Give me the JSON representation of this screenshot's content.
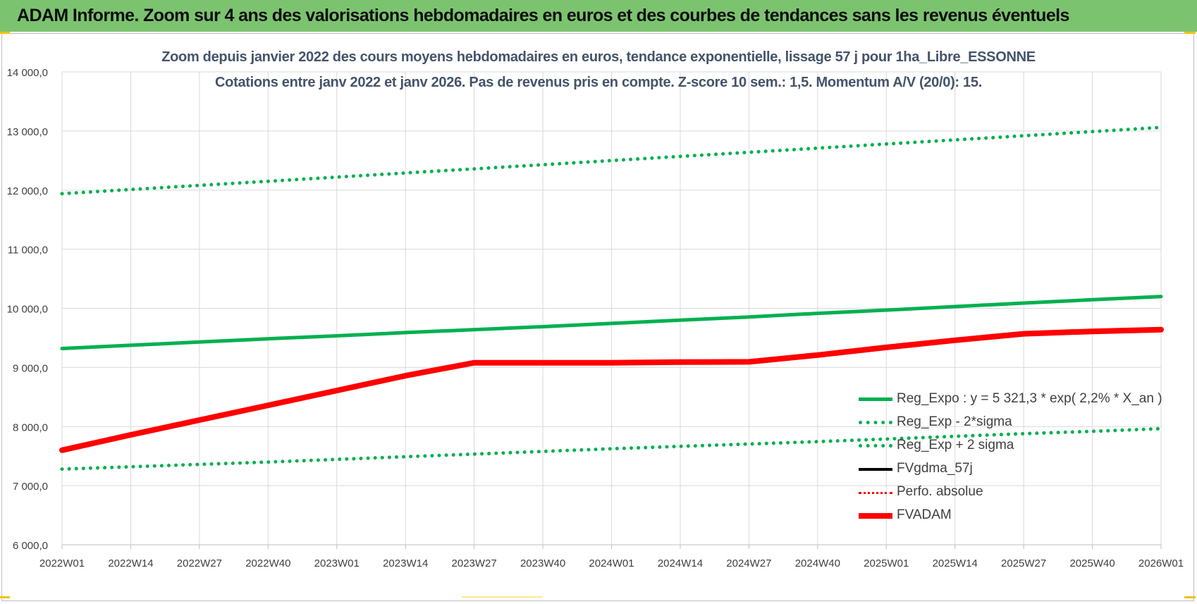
{
  "banner": {
    "title": "ADAM Informe. Zoom sur 4 ans des valorisations hebdomadaires en euros et des courbes de tendances sans les revenus éventuels"
  },
  "colors": {
    "banner_bg": "#7cc36f",
    "green": "#00b050",
    "red": "#ff0000",
    "black": "#000000",
    "subtitle": "#44546a"
  },
  "chart_data": {
    "type": "line",
    "title_line1": "Zoom depuis janvier 2022 des cours moyens hebdomadaires en euros, tendance exponentielle, lissage 57 j pour 1ha_Libre_ESSONNE",
    "title_line2": "Cotations entre janv 2022 et janv 2026. Pas de revenus pris en compte. Z-score 10 sem.: 1,5. Momentum A/V (20/0): 15.",
    "xlabel": "",
    "ylabel": "",
    "ylim": [
      6000,
      14000
    ],
    "y_ticks": [
      "6 000,0",
      "7 000,0",
      "8 000,0",
      "9 000,0",
      "10 000,0",
      "11 000,0",
      "12 000,0",
      "13 000,0",
      "14 000,0"
    ],
    "x_ticks": [
      "2022W01",
      "2022W14",
      "2022W27",
      "2022W40",
      "2023W01",
      "2023W14",
      "2023W27",
      "2023W40",
      "2024W01",
      "2024W14",
      "2024W27",
      "2024W40",
      "2025W01",
      "2025W14",
      "2025W27",
      "2025W40",
      "2026W01"
    ],
    "grid": true,
    "legend_position": "bottom-right",
    "x": [
      0,
      13,
      26,
      39,
      52,
      65,
      78,
      91,
      104,
      117,
      130,
      143,
      156,
      169,
      182,
      195,
      208
    ],
    "series": [
      {
        "name": "Reg_Expo : y = 5 321,3 * exp( 2,2% *  X_an )",
        "style": "solid",
        "color": "#00b050",
        "values": [
          9320,
          9375,
          9430,
          9485,
          9535,
          9590,
          9640,
          9690,
          9745,
          9800,
          9855,
          9915,
          9970,
          10030,
          10090,
          10145,
          10200
        ]
      },
      {
        "name": "Reg_Exp - 2*sigma",
        "style": "dotted",
        "color": "#00b050",
        "values": [
          7280,
          7320,
          7360,
          7400,
          7445,
          7490,
          7535,
          7580,
          7625,
          7665,
          7705,
          7745,
          7790,
          7835,
          7880,
          7920,
          7965
        ]
      },
      {
        "name": "Reg_Exp + 2 sigma",
        "style": "dotted",
        "color": "#00b050",
        "values": [
          11940,
          12010,
          12080,
          12150,
          12220,
          12290,
          12360,
          12430,
          12500,
          12570,
          12640,
          12710,
          12780,
          12850,
          12920,
          12990,
          13060
        ]
      },
      {
        "name": "FVgdma_57j",
        "style": "solid-thin",
        "color": "#000000",
        "values": [
          7600,
          7850,
          8100,
          8350,
          8600,
          8850,
          9060,
          9080,
          9080,
          9090,
          9100,
          9200,
          9340,
          9460,
          9570,
          9610,
          9640
        ]
      },
      {
        "name": "Perfo. absolue",
        "style": "dotted-thin",
        "color": "#ff0000",
        "values": [
          7600,
          7850,
          8100,
          8350,
          8600,
          8850,
          9070,
          9080,
          9080,
          9090,
          9095,
          9200,
          9340,
          9460,
          9570,
          9610,
          9640
        ]
      },
      {
        "name": "FVADAM",
        "style": "solid-thick",
        "color": "#ff0000",
        "values": [
          7600,
          7860,
          8110,
          8360,
          8610,
          8860,
          9080,
          9080,
          9080,
          9090,
          9095,
          9210,
          9340,
          9460,
          9570,
          9610,
          9640
        ]
      }
    ]
  }
}
